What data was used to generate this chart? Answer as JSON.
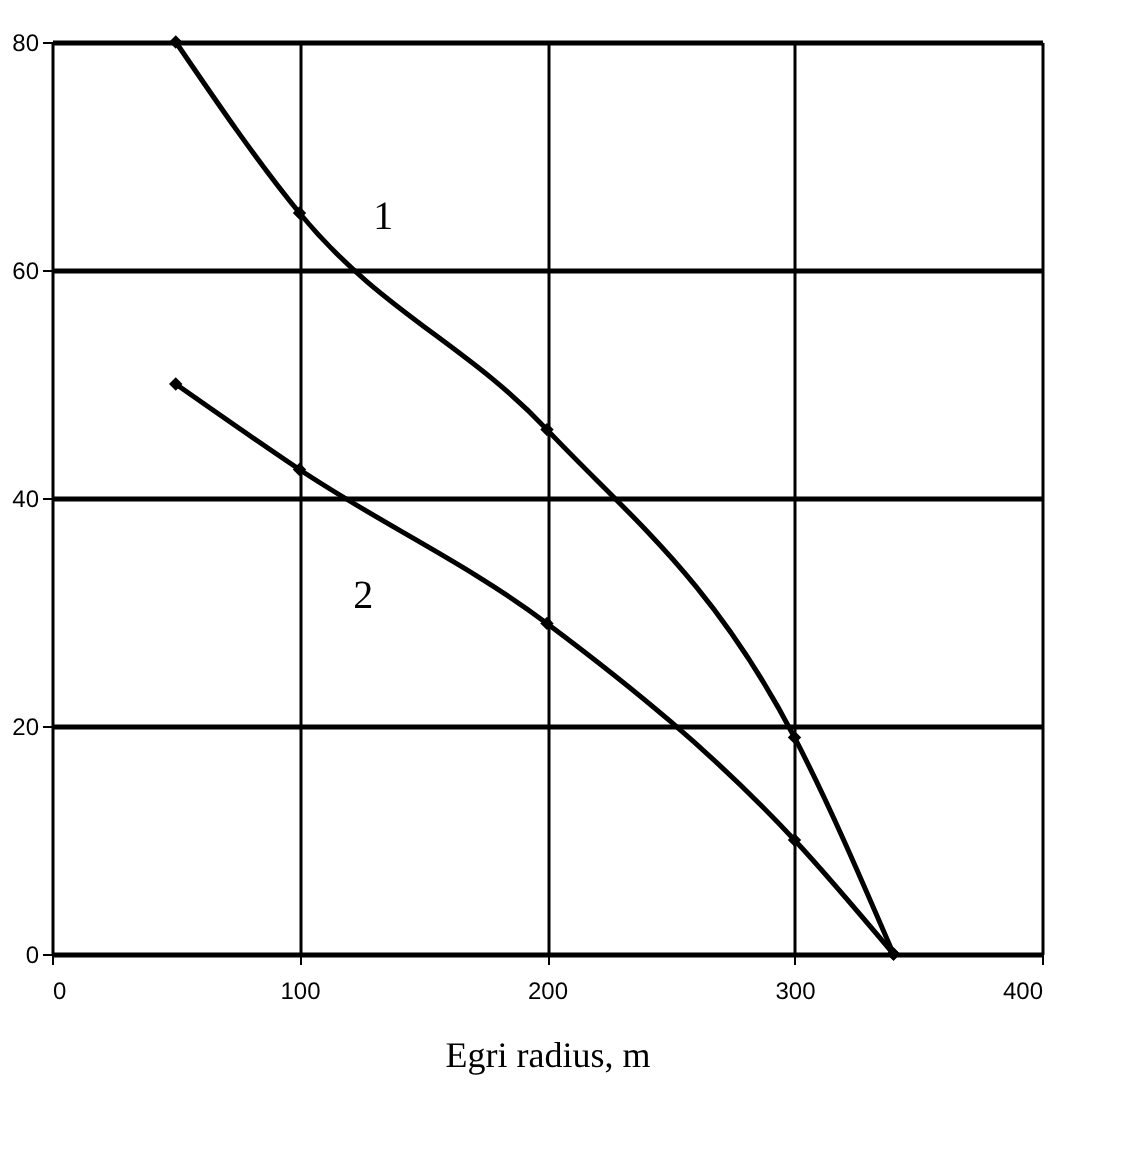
{
  "chart_data": {
    "type": "line",
    "xlabel": "Egri radius, m",
    "xlim": [
      0,
      400
    ],
    "xticks": [
      0,
      100,
      200,
      300,
      400
    ],
    "ylim": [
      0,
      80
    ],
    "yticks": [
      0,
      20,
      40,
      60,
      80
    ],
    "grid": true,
    "legend": false,
    "marker": "diamond",
    "line_style": "solid",
    "series": [
      {
        "name": "1",
        "color": "#000000",
        "x": [
          50,
          100,
          200,
          300,
          340
        ],
        "values": [
          80,
          65,
          46,
          19,
          0
        ]
      },
      {
        "name": "2",
        "color": "#000000",
        "x": [
          50,
          100,
          200,
          300,
          340
        ],
        "values": [
          50,
          42.5,
          29,
          10,
          0
        ]
      }
    ]
  }
}
